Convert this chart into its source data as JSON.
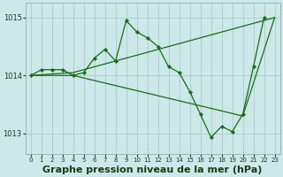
{
  "bg_color": "#cce8e8",
  "grid_color": "#aacccc",
  "line_color": "#1a6b1a",
  "marker_color": "#1a6b1a",
  "title": "Graphe pression niveau de la mer (hPa)",
  "xlim": [
    -0.5,
    23.5
  ],
  "ylim": [
    1012.65,
    1015.25
  ],
  "yticks": [
    1013,
    1014,
    1015
  ],
  "xticks": [
    0,
    1,
    2,
    3,
    4,
    5,
    6,
    7,
    8,
    9,
    10,
    11,
    12,
    13,
    14,
    15,
    16,
    17,
    18,
    19,
    20,
    21,
    22,
    23
  ],
  "series_main": {
    "x": [
      0,
      1,
      2,
      3,
      4,
      5,
      6,
      7,
      8,
      9,
      10,
      11,
      12,
      13,
      14,
      15,
      16,
      17,
      18,
      19,
      20,
      21,
      22
    ],
    "y": [
      1014.0,
      1014.1,
      1014.1,
      1014.1,
      1014.0,
      1014.05,
      1014.3,
      1014.45,
      1014.25,
      1014.95,
      1014.75,
      1014.65,
      1014.5,
      1014.15,
      1014.05,
      1013.72,
      1013.33,
      1012.93,
      1013.12,
      1013.03,
      1013.33,
      1014.15,
      1015.0
    ]
  },
  "series_upper": {
    "x": [
      0,
      4,
      23
    ],
    "y": [
      1014.0,
      1014.05,
      1015.0
    ]
  },
  "series_lower": {
    "x": [
      0,
      4,
      20,
      23
    ],
    "y": [
      1014.0,
      1014.0,
      1013.3,
      1015.0
    ]
  },
  "title_fontsize": 8,
  "tick_fontsize": 6,
  "tick_color": "#1a3a1a",
  "lw": 0.9,
  "marker_size": 2.2
}
